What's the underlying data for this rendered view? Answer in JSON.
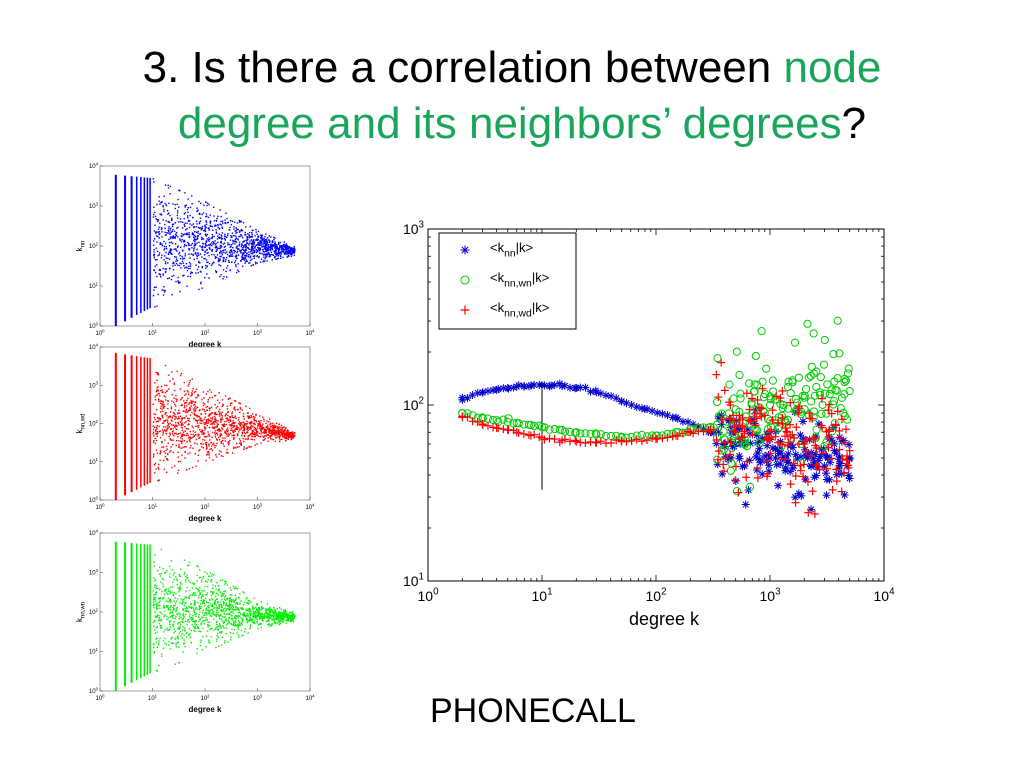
{
  "slide": {
    "title_prefix": "3. Is there a correlation between ",
    "title_highlight_1": "node",
    "title_highlight_2": "degree and its neighbors’ degrees",
    "title_suffix": "?",
    "caption": "PHONECALL",
    "highlight_color": "#1aa65a"
  },
  "chart_data": [
    {
      "type": "scatter",
      "title": "",
      "xlabel": "degree k",
      "ylabel": "k_nn",
      "xscale": "log",
      "yscale": "log",
      "xlim": [
        1,
        10000
      ],
      "ylim": [
        1,
        10000
      ],
      "xticks": [
        "10^0",
        "10^1",
        "10^2",
        "10^3",
        "10^4"
      ],
      "yticks": [
        "10^0",
        "10^1",
        "10^2",
        "10^3",
        "10^4"
      ],
      "color": "#0000ff",
      "series": [
        {
          "name": "",
          "envelope": {
            "k": [
              2,
              10,
              100,
              1000,
              5000
            ],
            "lower": [
              1,
              3,
              10,
              40,
              60
            ],
            "upper": [
              6000,
              5000,
              1300,
              250,
              100
            ]
          }
        }
      ]
    },
    {
      "type": "scatter",
      "title": "",
      "xlabel": "degree k",
      "ylabel": "k_nn,wd",
      "xscale": "log",
      "yscale": "log",
      "xlim": [
        1,
        10000
      ],
      "ylim": [
        1,
        10000
      ],
      "xticks": [
        "10^0",
        "10^1",
        "10^2",
        "10^3",
        "10^4"
      ],
      "yticks": [
        "10^0",
        "10^1",
        "10^2",
        "10^3",
        "10^4"
      ],
      "color": "#ff0000",
      "series": [
        {
          "name": "",
          "envelope": {
            "k": [
              2,
              10,
              100,
              1000,
              5000
            ],
            "lower": [
              1,
              3,
              10,
              30,
              40
            ],
            "upper": [
              7000,
              5000,
              1000,
              200,
              60
            ]
          }
        }
      ]
    },
    {
      "type": "scatter",
      "title": "",
      "xlabel": "degree k",
      "ylabel": "k_nn,wn",
      "xscale": "log",
      "yscale": "log",
      "xlim": [
        1,
        10000
      ],
      "ylim": [
        1,
        10000
      ],
      "xticks": [
        "10^0",
        "10^1",
        "10^2",
        "10^3",
        "10^4"
      ],
      "yticks": [
        "10^0",
        "10^1",
        "10^2",
        "10^3",
        "10^4"
      ],
      "color": "#00ee00",
      "series": [
        {
          "name": "",
          "envelope": {
            "k": [
              2,
              10,
              100,
              1000,
              5000
            ],
            "lower": [
              1,
              3,
              10,
              40,
              60
            ],
            "upper": [
              6000,
              5000,
              1200,
              200,
              100
            ]
          }
        }
      ]
    },
    {
      "type": "scatter",
      "title": "",
      "xlabel": "degree k",
      "ylabel": "",
      "xscale": "log",
      "yscale": "log",
      "xlim": [
        1,
        10000
      ],
      "ylim": [
        10,
        1000
      ],
      "xticks": [
        "10^0",
        "10^1",
        "10^2",
        "10^3",
        "10^4"
      ],
      "yticks": [
        "10^1",
        "10^2",
        "10^3"
      ],
      "legend": "top-left",
      "vline_x": 10,
      "series": [
        {
          "name": "<k_nn|k>",
          "marker": "asterisk",
          "color": "#0000cc",
          "x": [
            2,
            3,
            4,
            5,
            6,
            7,
            8,
            10,
            12,
            15,
            20,
            30,
            50,
            80,
            150,
            300,
            500,
            1000,
            3000,
            5000
          ],
          "y": [
            110,
            118,
            122,
            125,
            127,
            128,
            129,
            130,
            129,
            128,
            125,
            118,
            105,
            95,
            85,
            70,
            60,
            50,
            45,
            50
          ]
        },
        {
          "name": "<k_nn,wn|k>",
          "marker": "circle",
          "color": "#00cc00",
          "x": [
            2,
            3,
            4,
            5,
            6,
            8,
            10,
            15,
            20,
            30,
            50,
            100,
            150,
            200,
            300,
            500,
            700,
            1000,
            2000,
            5000
          ],
          "y": [
            90,
            85,
            82,
            80,
            79,
            77,
            75,
            72,
            70,
            68,
            66,
            67,
            70,
            73,
            75,
            80,
            90,
            100,
            110,
            120
          ]
        },
        {
          "name": "<k_nn,wd|k>",
          "marker": "plus",
          "color": "#ff0000",
          "x": [
            2,
            3,
            4,
            5,
            6,
            8,
            10,
            15,
            20,
            30,
            50,
            100,
            150,
            200,
            300,
            500,
            700,
            1000,
            2000,
            5000
          ],
          "y": [
            85,
            78,
            74,
            72,
            70,
            67,
            65,
            63,
            62,
            61,
            62,
            64,
            67,
            70,
            72,
            70,
            68,
            65,
            60,
            55
          ]
        }
      ]
    }
  ]
}
